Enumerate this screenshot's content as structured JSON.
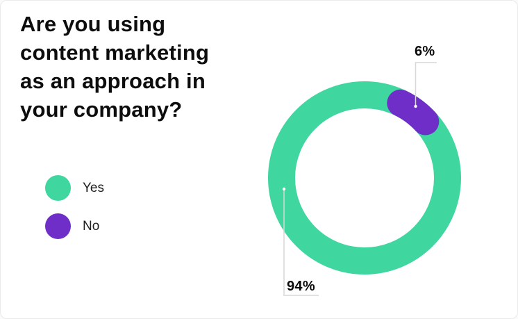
{
  "title": {
    "full": "Are you using content marketing as an approach in your company?",
    "lines": [
      "Are you using",
      "content marketing",
      "as an approach in",
      "your company?"
    ]
  },
  "legend": {
    "items": [
      {
        "label": "Yes",
        "color": "#3fd6a0"
      },
      {
        "label": "No",
        "color": "#6e2ec7"
      }
    ]
  },
  "annotations": {
    "yes_label": "94%",
    "no_label": "6%"
  },
  "chart_data": {
    "type": "pie",
    "subtype": "donut",
    "title": "Are you using content marketing as an approach in your company?",
    "categories": [
      "Yes",
      "No"
    ],
    "values": [
      94,
      6
    ],
    "unit": "%",
    "data_labels": [
      "94%",
      "6%"
    ],
    "colors": {
      "yes": "#3fd6a0",
      "no": "#6e2ec7"
    },
    "callout_line_color": "#d8d6d6",
    "legend_position": "left",
    "no_slice_mid_angle_deg_from_top": 36.5
  }
}
